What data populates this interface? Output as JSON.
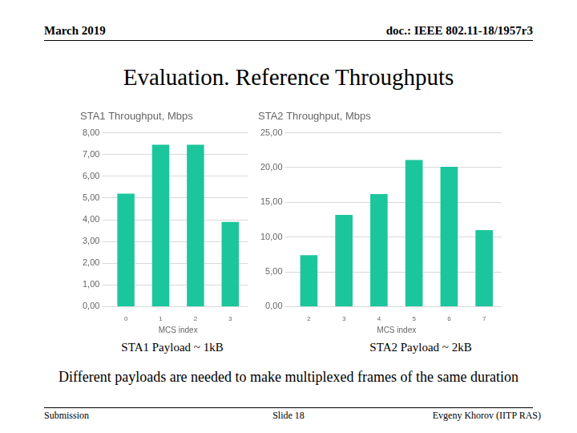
{
  "header": {
    "date": "March 2019",
    "doc": "doc.: IEEE 802.11-18/1957r3"
  },
  "title": "Evaluation. Reference Throughputs",
  "chart_data": [
    {
      "type": "bar",
      "title": "STA1 Throughput, Mbps",
      "x_label": "MCS index",
      "categories": [
        "0",
        "1",
        "2",
        "3"
      ],
      "values": [
        5.2,
        7.45,
        7.45,
        3.9
      ],
      "color": "#1cc69c",
      "ylim": [
        0,
        8
      ],
      "yticks": [
        {
          "value": 0,
          "label": "0,00"
        },
        {
          "value": 1,
          "label": "1,00"
        },
        {
          "value": 2,
          "label": "2,00"
        },
        {
          "value": 3,
          "label": "3,00"
        },
        {
          "value": 4,
          "label": "4,00"
        },
        {
          "value": 5,
          "label": "5,00"
        },
        {
          "value": 6,
          "label": "6,00"
        },
        {
          "value": 7,
          "label": "7,00"
        },
        {
          "value": 8,
          "label": "8,00"
        }
      ],
      "grid": true,
      "caption": "STA1 Payload ~ 1kB"
    },
    {
      "type": "bar",
      "title": "STA2 Throughput, Mbps",
      "x_label": "MCS index",
      "categories": [
        "2",
        "3",
        "4",
        "5",
        "6",
        "7"
      ],
      "values": [
        7.4,
        13.2,
        16.2,
        21.1,
        20.1,
        11.0
      ],
      "color": "#1cc69c",
      "ylim": [
        0,
        25
      ],
      "yticks": [
        {
          "value": 0,
          "label": "0,00"
        },
        {
          "value": 5,
          "label": "5,00"
        },
        {
          "value": 10,
          "label": "10,00"
        },
        {
          "value": 15,
          "label": "15,00"
        },
        {
          "value": 20,
          "label": "20,00"
        },
        {
          "value": 25,
          "label": "25,00"
        }
      ],
      "grid": true,
      "caption": "STA2 Payload ~ 2kB"
    }
  ],
  "note": "Different payloads are needed to make multiplexed frames of the same duration",
  "footer": {
    "left": "Submission",
    "center": "Slide 18",
    "right": "Evgeny Khorov (IITP RAS)"
  }
}
